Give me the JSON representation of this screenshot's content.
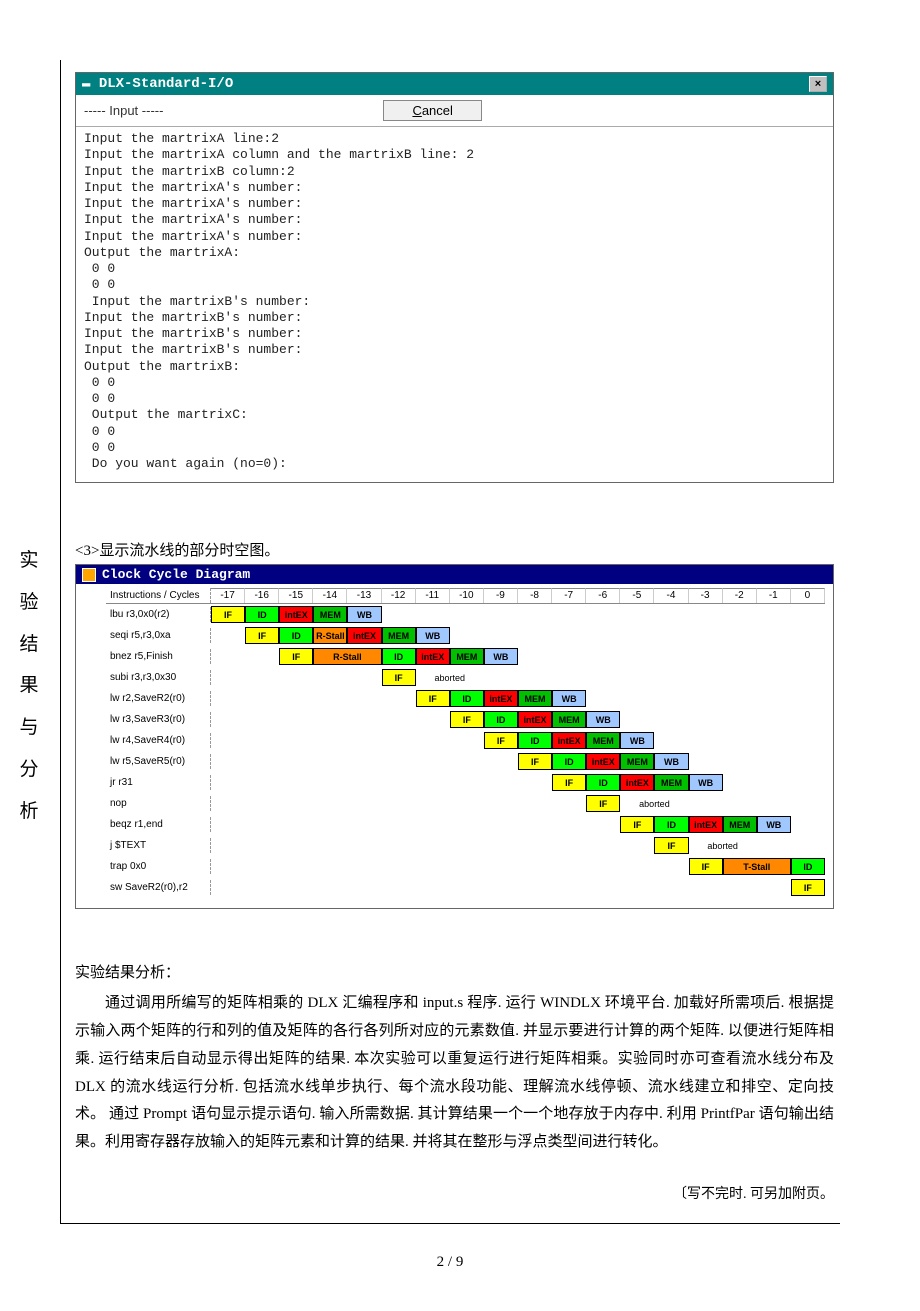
{
  "sideLabel": "实验结果与分析",
  "dlxWin": {
    "title": "DLX-Standard-I/O",
    "closeIcon": "×",
    "inputLabel": "----- Input -----",
    "cancel": "Cancel",
    "body": "Input the martrixA line:2\nInput the martrixA column and the martrixB line: 2\nInput the martrixB column:2\nInput the martrixA's number:\nInput the martrixA's number:\nInput the martrixA's number:\nInput the martrixA's number:\nOutput the martrixA:\n 0 0\n 0 0\n Input the martrixB's number:\nInput the martrixB's number:\nInput the martrixB's number:\nInput the martrixB's number:\nOutput the martrixB:\n 0 0\n 0 0\n Output the martrixC:\n 0 0\n 0 0\n Do you want again (no=0):"
  },
  "sectionHeading": "<3>显示流水线的部分时空图。",
  "ccd": {
    "title": "Clock Cycle Diagram",
    "headerLabel": "Instructions / Cycles",
    "cycles": [
      "-17",
      "-16",
      "-15",
      "-14",
      "-13",
      "-12",
      "-11",
      "-10",
      "-9",
      "-8",
      "-7",
      "-6",
      "-5",
      "-4",
      "-3",
      "-2",
      "-1",
      "0"
    ],
    "rows": [
      {
        "label": "lbu r3,0x0(r2)",
        "start": 0,
        "stages": [
          {
            "t": "IF",
            "c": "IF"
          },
          {
            "t": "ID",
            "c": "ID"
          },
          {
            "t": "intEX",
            "c": "EX"
          },
          {
            "t": "MEM",
            "c": "MEM"
          },
          {
            "t": "WB",
            "c": "WB"
          }
        ]
      },
      {
        "label": "seqi r5,r3,0xa",
        "start": 1,
        "stages": [
          {
            "t": "IF",
            "c": "IF"
          },
          {
            "t": "ID",
            "c": "ID"
          },
          {
            "t": "R-Stall",
            "c": "STALL"
          },
          {
            "t": "intEX",
            "c": "EX"
          },
          {
            "t": "MEM",
            "c": "MEM"
          },
          {
            "t": "WB",
            "c": "WB"
          }
        ]
      },
      {
        "label": "bnez r5,Finish",
        "start": 2,
        "stages": [
          {
            "t": "IF",
            "c": "IF"
          },
          {
            "t": "R-Stall",
            "c": "STALL",
            "w": 2
          },
          {
            "t": "ID",
            "c": "ID"
          },
          {
            "t": "intEX",
            "c": "EX"
          },
          {
            "t": "MEM",
            "c": "MEM"
          },
          {
            "t": "WB",
            "c": "WB"
          }
        ]
      },
      {
        "label": "subi r3,r3,0x30",
        "start": 5,
        "stages": [
          {
            "t": "IF",
            "c": "IF"
          },
          {
            "t": "aborted",
            "c": "ABORT",
            "w": 2
          }
        ]
      },
      {
        "label": "lw r2,SaveR2(r0)",
        "start": 6,
        "stages": [
          {
            "t": "IF",
            "c": "IF"
          },
          {
            "t": "ID",
            "c": "ID"
          },
          {
            "t": "intEX",
            "c": "EX"
          },
          {
            "t": "MEM",
            "c": "MEM"
          },
          {
            "t": "WB",
            "c": "WB"
          }
        ]
      },
      {
        "label": "lw r3,SaveR3(r0)",
        "start": 7,
        "stages": [
          {
            "t": "IF",
            "c": "IF"
          },
          {
            "t": "ID",
            "c": "ID"
          },
          {
            "t": "intEX",
            "c": "EX"
          },
          {
            "t": "MEM",
            "c": "MEM"
          },
          {
            "t": "WB",
            "c": "WB"
          }
        ]
      },
      {
        "label": "lw r4,SaveR4(r0)",
        "start": 8,
        "stages": [
          {
            "t": "IF",
            "c": "IF"
          },
          {
            "t": "ID",
            "c": "ID"
          },
          {
            "t": "intEX",
            "c": "EX"
          },
          {
            "t": "MEM",
            "c": "MEM"
          },
          {
            "t": "WB",
            "c": "WB"
          }
        ]
      },
      {
        "label": "lw r5,SaveR5(r0)",
        "start": 9,
        "stages": [
          {
            "t": "IF",
            "c": "IF"
          },
          {
            "t": "ID",
            "c": "ID"
          },
          {
            "t": "intEX",
            "c": "EX"
          },
          {
            "t": "MEM",
            "c": "MEM"
          },
          {
            "t": "WB",
            "c": "WB"
          }
        ]
      },
      {
        "label": "jr r31",
        "start": 10,
        "stages": [
          {
            "t": "IF",
            "c": "IF"
          },
          {
            "t": "ID",
            "c": "ID"
          },
          {
            "t": "intEX",
            "c": "EX"
          },
          {
            "t": "MEM",
            "c": "MEM"
          },
          {
            "t": "WB",
            "c": "WB"
          }
        ]
      },
      {
        "label": "nop",
        "start": 11,
        "stages": [
          {
            "t": "IF",
            "c": "IF"
          },
          {
            "t": "aborted",
            "c": "ABORT",
            "w": 2
          }
        ]
      },
      {
        "label": "beqz r1,end",
        "start": 12,
        "stages": [
          {
            "t": "IF",
            "c": "IF"
          },
          {
            "t": "ID",
            "c": "ID"
          },
          {
            "t": "intEX",
            "c": "EX"
          },
          {
            "t": "MEM",
            "c": "MEM"
          },
          {
            "t": "WB",
            "c": "WB"
          }
        ]
      },
      {
        "label": "j $TEXT",
        "start": 13,
        "stages": [
          {
            "t": "IF",
            "c": "IF"
          },
          {
            "t": "aborted",
            "c": "ABORT",
            "w": 2
          }
        ]
      },
      {
        "label": "trap 0x0",
        "start": 14,
        "stages": [
          {
            "t": "IF",
            "c": "IF"
          },
          {
            "t": "T-Stall",
            "c": "TSTALL",
            "w": 2
          },
          {
            "t": "ID",
            "c": "ID"
          }
        ]
      },
      {
        "label": "sw SaveR2(r0),r2",
        "start": 17,
        "stages": [
          {
            "t": "IF",
            "c": "IF"
          }
        ]
      }
    ],
    "colors": {
      "IF": "#ffff00",
      "ID": "#00ff00",
      "EX": "#ff0000",
      "MEM": "#00c000",
      "WB": "#a0c8ff",
      "STALL": "#ff8800",
      "TSTALL": "#ff8800"
    }
  },
  "analysisTitle": "实验结果分析：",
  "analysisBody": "通过调用所编写的矩阵相乘的 DLX 汇编程序和 input.s 程序. 运行 WINDLX 环境平台. 加载好所需项后. 根据提示输入两个矩阵的行和列的值及矩阵的各行各列所对应的元素数值. 并显示要进行计算的两个矩阵. 以便进行矩阵相乘. 运行结束后自动显示得出矩阵的结果. 本次实验可以重复运行进行矩阵相乘。实验同时亦可查看流水线分布及DLX 的流水线运行分析. 包括流水线单步执行、每个流水段功能、理解流水线停顿、流水线建立和排空、定向技术。 通过 Prompt 语句显示提示语句. 输入所需数据. 其计算结果一个一个地存放于内存中. 利用 PrintfPar 语句输出结果。利用寄存器存放输入的矩阵元素和计算的结果. 并将其在整形与浮点类型间进行转化。",
  "footnote": "〔写不完时. 可另加附页。",
  "pageNum": "2 / 9"
}
